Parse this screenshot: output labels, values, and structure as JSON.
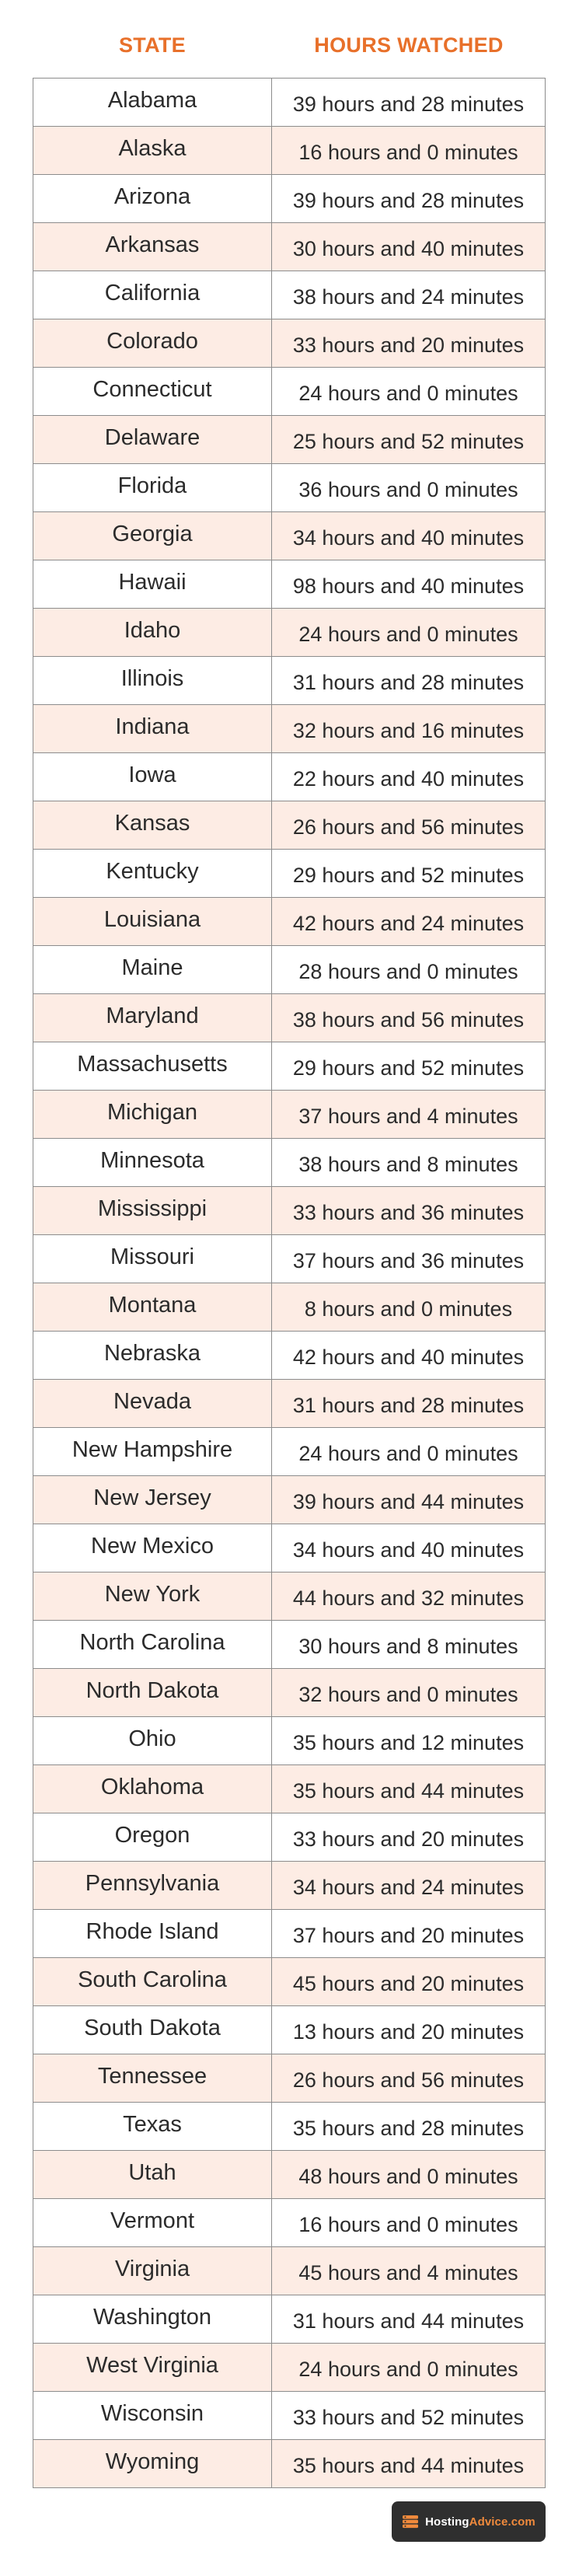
{
  "header": {
    "state_label": "STATE",
    "hours_label": "HOURS WATCHED"
  },
  "accent_color": "#e8702a",
  "row_alt_color": "#fdece4",
  "rows": [
    {
      "state": "Alabama",
      "hours": "39 hours and 28 minutes"
    },
    {
      "state": "Alaska",
      "hours": "16 hours and 0 minutes"
    },
    {
      "state": "Arizona",
      "hours": "39 hours and 28 minutes"
    },
    {
      "state": "Arkansas",
      "hours": "30 hours and 40 minutes"
    },
    {
      "state": "California",
      "hours": "38 hours and 24 minutes"
    },
    {
      "state": "Colorado",
      "hours": "33 hours and 20 minutes"
    },
    {
      "state": "Connecticut",
      "hours": "24 hours and 0 minutes"
    },
    {
      "state": "Delaware",
      "hours": "25 hours and 52 minutes"
    },
    {
      "state": "Florida",
      "hours": "36 hours and 0 minutes"
    },
    {
      "state": "Georgia",
      "hours": "34 hours and 40 minutes"
    },
    {
      "state": "Hawaii",
      "hours": "98 hours and 40 minutes"
    },
    {
      "state": "Idaho",
      "hours": "24 hours and 0 minutes"
    },
    {
      "state": "Illinois",
      "hours": "31 hours and 28 minutes"
    },
    {
      "state": "Indiana",
      "hours": "32 hours and 16 minutes"
    },
    {
      "state": "Iowa",
      "hours": "22 hours and 40 minutes"
    },
    {
      "state": "Kansas",
      "hours": "26 hours and 56 minutes"
    },
    {
      "state": "Kentucky",
      "hours": "29 hours and 52 minutes"
    },
    {
      "state": "Louisiana",
      "hours": "42 hours and 24 minutes"
    },
    {
      "state": "Maine",
      "hours": "28 hours and 0 minutes"
    },
    {
      "state": "Maryland",
      "hours": "38 hours and 56 minutes"
    },
    {
      "state": "Massachusetts",
      "hours": "29 hours and 52 minutes"
    },
    {
      "state": "Michigan",
      "hours": "37 hours and 4 minutes"
    },
    {
      "state": "Minnesota",
      "hours": "38 hours and 8 minutes"
    },
    {
      "state": "Mississippi",
      "hours": "33 hours and 36 minutes"
    },
    {
      "state": "Missouri",
      "hours": "37 hours and 36 minutes"
    },
    {
      "state": "Montana",
      "hours": "8 hours and 0 minutes"
    },
    {
      "state": "Nebraska",
      "hours": "42 hours and 40 minutes"
    },
    {
      "state": "Nevada",
      "hours": "31 hours and 28 minutes"
    },
    {
      "state": "New Hampshire",
      "hours": "24 hours and 0 minutes"
    },
    {
      "state": "New Jersey",
      "hours": "39 hours and 44 minutes"
    },
    {
      "state": "New Mexico",
      "hours": "34 hours and 40 minutes"
    },
    {
      "state": "New York",
      "hours": "44 hours and 32 minutes"
    },
    {
      "state": "North Carolina",
      "hours": "30 hours and 8 minutes"
    },
    {
      "state": "North Dakota",
      "hours": "32 hours and 0 minutes"
    },
    {
      "state": "Ohio",
      "hours": "35 hours and 12 minutes"
    },
    {
      "state": "Oklahoma",
      "hours": "35 hours and 44 minutes"
    },
    {
      "state": "Oregon",
      "hours": "33 hours and 20 minutes"
    },
    {
      "state": "Pennsylvania",
      "hours": "34 hours and 24 minutes"
    },
    {
      "state": "Rhode Island",
      "hours": "37 hours and 20 minutes"
    },
    {
      "state": "South Carolina",
      "hours": "45 hours and 20 minutes"
    },
    {
      "state": "South Dakota",
      "hours": "13 hours and 20 minutes"
    },
    {
      "state": "Tennessee",
      "hours": "26 hours and 56 minutes"
    },
    {
      "state": "Texas",
      "hours": "35 hours and 28 minutes"
    },
    {
      "state": "Utah",
      "hours": "48 hours and 0 minutes"
    },
    {
      "state": "Vermont",
      "hours": "16 hours and 0 minutes"
    },
    {
      "state": "Virginia",
      "hours": "45 hours and 4 minutes"
    },
    {
      "state": "Washington",
      "hours": "31 hours and 44 minutes"
    },
    {
      "state": "West Virginia",
      "hours": "24 hours and 0 minutes"
    },
    {
      "state": "Wisconsin",
      "hours": "33 hours and 52 minutes"
    },
    {
      "state": "Wyoming",
      "hours": "35 hours and 44 minutes"
    }
  ],
  "logo": {
    "icon": "server-stack-icon",
    "text_part1": "Hosting",
    "text_part2": "Advice.com"
  }
}
